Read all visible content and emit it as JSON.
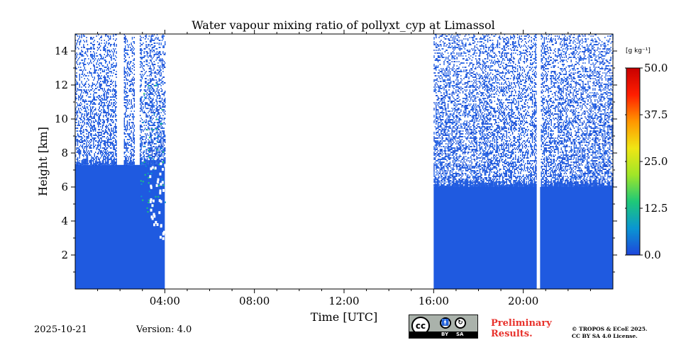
{
  "chart_data": {
    "type": "heatmap",
    "title": "Water vapour mixing ratio of pollyxt_cyp at Limassol",
    "xlabel": "Time [UTC]",
    "ylabel": "Height [km]",
    "xlim_hours": [
      0,
      24
    ],
    "ylim_km": [
      0,
      15
    ],
    "x_ticks_hours": [
      4,
      8,
      12,
      16,
      20
    ],
    "x_tick_labels": [
      "04:00",
      "08:00",
      "12:00",
      "16:00",
      "20:00"
    ],
    "y_ticks": [
      2,
      4,
      6,
      8,
      10,
      12,
      14
    ],
    "y_tick_labels": [
      "2",
      "4",
      "6",
      "8",
      "10",
      "12",
      "14"
    ],
    "colorbar": {
      "unit_label": "[g kg⁻¹]",
      "range": [
        0.0,
        50.0
      ],
      "ticks": [
        0.0,
        12.5,
        25.0,
        37.5,
        50.0
      ],
      "tick_labels": [
        "0.0",
        "12.5",
        "25.0",
        "37.5",
        "50.0"
      ],
      "colormap": [
        "#1e46dc",
        "#0a96d2",
        "#1ec878",
        "#a0e628",
        "#f0e614",
        "#ff9600",
        "#ff1e00",
        "#c80000"
      ]
    },
    "data_segments": [
      {
        "start_hour": 0.0,
        "end_hour": 4.0,
        "dense_top_km": 7.3,
        "sparse_top_km": 15.0,
        "gaps_hours": [
          [
            1.85,
            2.15
          ],
          [
            2.65,
            2.85
          ]
        ]
      },
      {
        "start_hour": 16.0,
        "end_hour": 24.0,
        "dense_top_km": 6.0,
        "sparse_top_km": 15.0,
        "gaps_hours": [
          [
            20.6,
            20.75
          ]
        ]
      }
    ],
    "typical_value": 1.5
  },
  "footer": {
    "date": "2025-10-21",
    "version": "Version: 4.0",
    "preliminary_line1": "Preliminary",
    "preliminary_line2": "Results.",
    "copyright_line1": "© TROPOS & ECoE 2025.",
    "copyright_line2": "CC BY SA 4.0 License.",
    "license_badge": {
      "cc": "cc",
      "by": "BY",
      "sa": "SA"
    }
  }
}
